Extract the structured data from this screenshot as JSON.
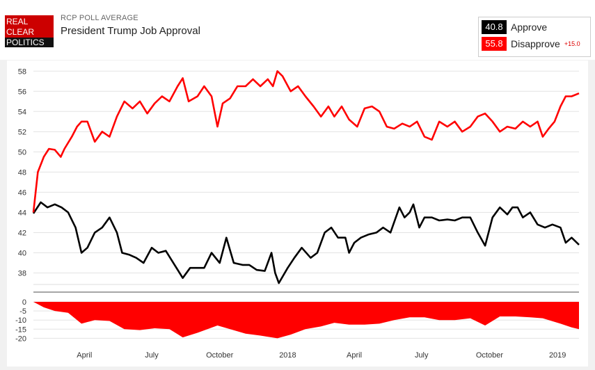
{
  "header": {
    "logo_lines": [
      "REAL",
      "CLEAR",
      "POLITICS"
    ],
    "kicker": "RCP POLL AVERAGE",
    "title": "President Trump Job Approval"
  },
  "legend": {
    "approve": {
      "value": "40.8",
      "label": "Approve",
      "color": "#000000"
    },
    "disapprove": {
      "value": "55.8",
      "label": "Disapprove",
      "color": "#ff0000",
      "spread": "+15.0"
    }
  },
  "chart_data": {
    "type": "line",
    "x_ticks": [
      "April",
      "July",
      "October",
      "2018",
      "April",
      "July",
      "October",
      "2019"
    ],
    "y_ticks": [
      "58",
      "56",
      "54",
      "52",
      "50",
      "48",
      "46",
      "44",
      "42",
      "40",
      "38"
    ],
    "ylim": [
      37,
      58.5
    ],
    "spread_ticks": [
      "0",
      "-5",
      "-10",
      "-15",
      "-20"
    ],
    "spread_ylim": [
      -21,
      0
    ],
    "x_date_range": [
      "2017-01-22",
      "2019-01-30"
    ],
    "series": [
      {
        "name": "Approve",
        "color": "#000000",
        "points": [
          [
            "2017-01-22",
            43.9
          ],
          [
            "2017-02-01",
            45.0
          ],
          [
            "2017-02-10",
            44.5
          ],
          [
            "2017-02-20",
            44.8
          ],
          [
            "2017-03-01",
            44.5
          ],
          [
            "2017-03-10",
            44.0
          ],
          [
            "2017-03-20",
            42.5
          ],
          [
            "2017-03-28",
            40.0
          ],
          [
            "2017-04-05",
            40.5
          ],
          [
            "2017-04-15",
            42.0
          ],
          [
            "2017-04-25",
            42.5
          ],
          [
            "2017-05-05",
            43.5
          ],
          [
            "2017-05-15",
            42.0
          ],
          [
            "2017-05-22",
            40.0
          ],
          [
            "2017-06-01",
            39.8
          ],
          [
            "2017-06-10",
            39.5
          ],
          [
            "2017-06-20",
            39.0
          ],
          [
            "2017-07-01",
            40.5
          ],
          [
            "2017-07-10",
            40.0
          ],
          [
            "2017-07-20",
            40.2
          ],
          [
            "2017-08-01",
            38.8
          ],
          [
            "2017-08-12",
            37.5
          ],
          [
            "2017-08-22",
            38.5
          ],
          [
            "2017-09-01",
            38.5
          ],
          [
            "2017-09-10",
            38.5
          ],
          [
            "2017-09-20",
            40.0
          ],
          [
            "2017-10-01",
            39.0
          ],
          [
            "2017-10-10",
            41.5
          ],
          [
            "2017-10-20",
            39.0
          ],
          [
            "2017-11-01",
            38.8
          ],
          [
            "2017-11-10",
            38.8
          ],
          [
            "2017-11-20",
            38.3
          ],
          [
            "2017-12-01",
            38.2
          ],
          [
            "2017-12-10",
            40.0
          ],
          [
            "2017-12-15",
            38.0
          ],
          [
            "2017-12-20",
            37.0
          ],
          [
            "2018-01-01",
            38.5
          ],
          [
            "2018-01-10",
            39.5
          ],
          [
            "2018-01-20",
            40.5
          ],
          [
            "2018-02-01",
            39.5
          ],
          [
            "2018-02-10",
            40.0
          ],
          [
            "2018-02-20",
            42.0
          ],
          [
            "2018-03-01",
            42.5
          ],
          [
            "2018-03-10",
            41.5
          ],
          [
            "2018-03-20",
            41.5
          ],
          [
            "2018-03-25",
            40.0
          ],
          [
            "2018-04-01",
            41.0
          ],
          [
            "2018-04-10",
            41.5
          ],
          [
            "2018-04-20",
            41.8
          ],
          [
            "2018-05-01",
            42.0
          ],
          [
            "2018-05-10",
            42.5
          ],
          [
            "2018-05-20",
            42.0
          ],
          [
            "2018-06-01",
            44.5
          ],
          [
            "2018-06-08",
            43.5
          ],
          [
            "2018-06-15",
            44.0
          ],
          [
            "2018-06-20",
            44.8
          ],
          [
            "2018-06-28",
            42.5
          ],
          [
            "2018-07-05",
            43.5
          ],
          [
            "2018-07-15",
            43.5
          ],
          [
            "2018-07-25",
            43.2
          ],
          [
            "2018-08-05",
            43.3
          ],
          [
            "2018-08-15",
            43.2
          ],
          [
            "2018-08-25",
            43.5
          ],
          [
            "2018-09-05",
            43.5
          ],
          [
            "2018-09-15",
            42.0
          ],
          [
            "2018-09-25",
            40.7
          ],
          [
            "2018-10-05",
            43.5
          ],
          [
            "2018-10-15",
            44.5
          ],
          [
            "2018-10-25",
            43.8
          ],
          [
            "2018-11-01",
            44.5
          ],
          [
            "2018-11-08",
            44.5
          ],
          [
            "2018-11-15",
            43.5
          ],
          [
            "2018-11-25",
            44.0
          ],
          [
            "2018-12-05",
            42.8
          ],
          [
            "2018-12-15",
            42.5
          ],
          [
            "2018-12-25",
            42.8
          ],
          [
            "2019-01-05",
            42.5
          ],
          [
            "2019-01-12",
            41.0
          ],
          [
            "2019-01-20",
            41.5
          ],
          [
            "2019-01-30",
            40.8
          ]
        ]
      },
      {
        "name": "Disapprove",
        "color": "#ff0000",
        "points": [
          [
            "2017-01-22",
            44.0
          ],
          [
            "2017-01-28",
            48.0
          ],
          [
            "2017-02-05",
            49.5
          ],
          [
            "2017-02-12",
            50.3
          ],
          [
            "2017-02-20",
            50.2
          ],
          [
            "2017-02-28",
            49.5
          ],
          [
            "2017-03-05",
            50.3
          ],
          [
            "2017-03-15",
            51.5
          ],
          [
            "2017-03-22",
            52.5
          ],
          [
            "2017-03-28",
            53.0
          ],
          [
            "2017-04-05",
            53.0
          ],
          [
            "2017-04-15",
            51.0
          ],
          [
            "2017-04-25",
            52.0
          ],
          [
            "2017-05-05",
            51.5
          ],
          [
            "2017-05-15",
            53.5
          ],
          [
            "2017-05-25",
            55.0
          ],
          [
            "2017-06-05",
            54.3
          ],
          [
            "2017-06-15",
            55.0
          ],
          [
            "2017-06-25",
            53.8
          ],
          [
            "2017-07-05",
            54.8
          ],
          [
            "2017-07-15",
            55.5
          ],
          [
            "2017-07-25",
            55.0
          ],
          [
            "2017-08-05",
            56.5
          ],
          [
            "2017-08-12",
            57.3
          ],
          [
            "2017-08-20",
            55.0
          ],
          [
            "2017-09-01",
            55.5
          ],
          [
            "2017-09-10",
            56.5
          ],
          [
            "2017-09-20",
            55.5
          ],
          [
            "2017-09-28",
            52.5
          ],
          [
            "2017-10-05",
            54.8
          ],
          [
            "2017-10-15",
            55.3
          ],
          [
            "2017-10-25",
            56.5
          ],
          [
            "2017-11-05",
            56.5
          ],
          [
            "2017-11-15",
            57.2
          ],
          [
            "2017-11-25",
            56.5
          ],
          [
            "2017-12-05",
            57.2
          ],
          [
            "2017-12-12",
            56.5
          ],
          [
            "2017-12-18",
            58.0
          ],
          [
            "2017-12-25",
            57.5
          ],
          [
            "2018-01-05",
            56.0
          ],
          [
            "2018-01-15",
            56.5
          ],
          [
            "2018-01-25",
            55.5
          ],
          [
            "2018-02-05",
            54.5
          ],
          [
            "2018-02-15",
            53.5
          ],
          [
            "2018-02-25",
            54.5
          ],
          [
            "2018-03-05",
            53.5
          ],
          [
            "2018-03-15",
            54.5
          ],
          [
            "2018-03-25",
            53.2
          ],
          [
            "2018-04-05",
            52.5
          ],
          [
            "2018-04-15",
            54.3
          ],
          [
            "2018-04-25",
            54.5
          ],
          [
            "2018-05-05",
            54.0
          ],
          [
            "2018-05-15",
            52.5
          ],
          [
            "2018-05-25",
            52.3
          ],
          [
            "2018-06-05",
            52.8
          ],
          [
            "2018-06-15",
            52.5
          ],
          [
            "2018-06-25",
            53.0
          ],
          [
            "2018-07-05",
            51.5
          ],
          [
            "2018-07-15",
            51.2
          ],
          [
            "2018-07-25",
            53.0
          ],
          [
            "2018-08-05",
            52.5
          ],
          [
            "2018-08-15",
            53.0
          ],
          [
            "2018-08-25",
            52.0
          ],
          [
            "2018-09-05",
            52.5
          ],
          [
            "2018-09-15",
            53.5
          ],
          [
            "2018-09-25",
            53.8
          ],
          [
            "2018-10-05",
            53.0
          ],
          [
            "2018-10-15",
            52.0
          ],
          [
            "2018-10-25",
            52.5
          ],
          [
            "2018-11-05",
            52.3
          ],
          [
            "2018-11-15",
            53.0
          ],
          [
            "2018-11-25",
            52.5
          ],
          [
            "2018-12-05",
            53.0
          ],
          [
            "2018-12-12",
            51.5
          ],
          [
            "2018-12-20",
            52.3
          ],
          [
            "2018-12-28",
            53.0
          ],
          [
            "2019-01-05",
            54.5
          ],
          [
            "2019-01-12",
            55.5
          ],
          [
            "2019-01-20",
            55.5
          ],
          [
            "2019-01-30",
            55.8
          ]
        ]
      }
    ],
    "spread_series": {
      "name": "Spread",
      "color": "#ff0000",
      "points": [
        [
          "2017-01-22",
          0.0
        ],
        [
          "2017-02-05",
          -3.0
        ],
        [
          "2017-02-20",
          -5.0
        ],
        [
          "2017-03-10",
          -6.0
        ],
        [
          "2017-03-28",
          -12.0
        ],
        [
          "2017-04-15",
          -10.0
        ],
        [
          "2017-05-05",
          -10.5
        ],
        [
          "2017-05-25",
          -15.0
        ],
        [
          "2017-06-15",
          -15.5
        ],
        [
          "2017-07-05",
          -14.5
        ],
        [
          "2017-07-25",
          -15.0
        ],
        [
          "2017-08-12",
          -19.5
        ],
        [
          "2017-09-01",
          -17.0
        ],
        [
          "2017-09-28",
          -13.0
        ],
        [
          "2017-10-15",
          -15.0
        ],
        [
          "2017-11-05",
          -17.5
        ],
        [
          "2017-11-25",
          -18.5
        ],
        [
          "2017-12-18",
          -20.0
        ],
        [
          "2018-01-05",
          -18.0
        ],
        [
          "2018-01-25",
          -15.0
        ],
        [
          "2018-02-15",
          -13.5
        ],
        [
          "2018-03-05",
          -11.5
        ],
        [
          "2018-03-25",
          -12.5
        ],
        [
          "2018-04-15",
          -12.5
        ],
        [
          "2018-05-05",
          -12.0
        ],
        [
          "2018-05-25",
          -10.0
        ],
        [
          "2018-06-15",
          -8.5
        ],
        [
          "2018-07-05",
          -8.5
        ],
        [
          "2018-07-25",
          -10.0
        ],
        [
          "2018-08-15",
          -10.0
        ],
        [
          "2018-09-05",
          -9.0
        ],
        [
          "2018-09-25",
          -13.0
        ],
        [
          "2018-10-15",
          -8.0
        ],
        [
          "2018-11-05",
          -8.0
        ],
        [
          "2018-11-25",
          -8.5
        ],
        [
          "2018-12-12",
          -9.0
        ],
        [
          "2019-01-05",
          -12.0
        ],
        [
          "2019-01-20",
          -14.0
        ],
        [
          "2019-01-30",
          -15.0
        ]
      ]
    }
  }
}
